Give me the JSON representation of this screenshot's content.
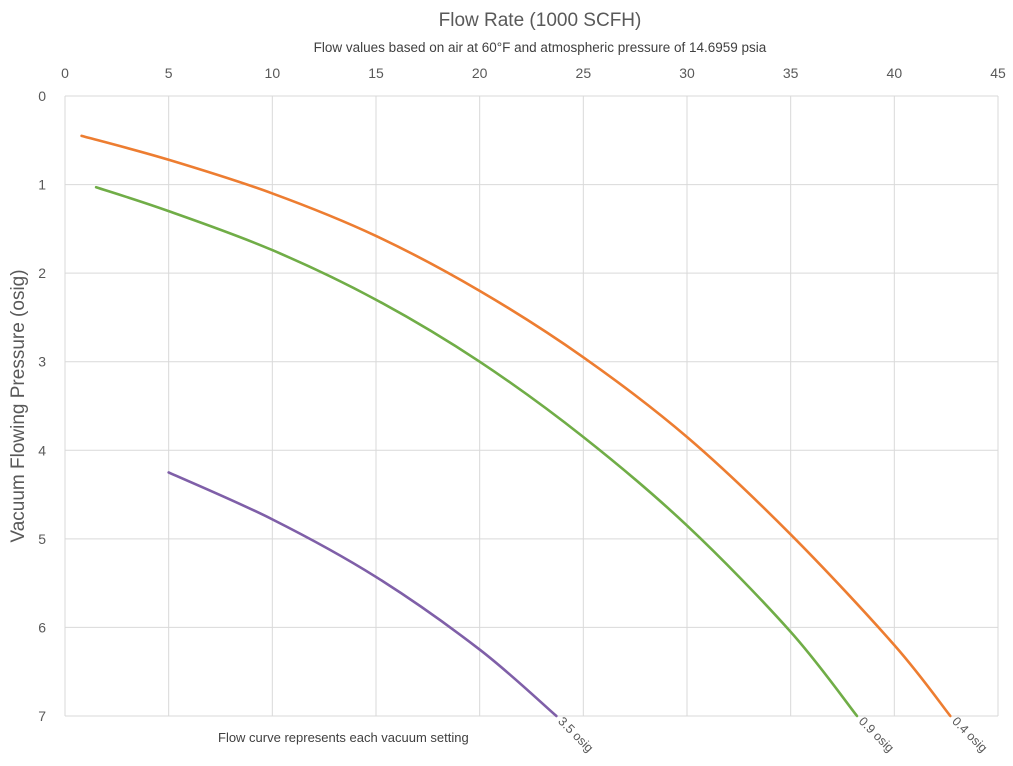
{
  "chart_data": {
    "type": "line",
    "title": "Flow Rate (1000 SCFH)",
    "subtitle": "Flow values based on air at 60°F and atmospheric pressure of 14.6959 psia",
    "xlabel": "Flow Rate (1000 SCFH)",
    "ylabel": "Vacuum Flowing Pressure (osig)",
    "x_axis_position": "top",
    "y_axis_inverted": true,
    "xlim": [
      0,
      45
    ],
    "ylim": [
      0,
      7
    ],
    "xticks": [
      0,
      5,
      10,
      15,
      20,
      25,
      30,
      35,
      40,
      45
    ],
    "yticks": [
      0,
      1,
      2,
      3,
      4,
      5,
      6,
      7
    ],
    "grid": true,
    "annotation": "Flow curve represents each vacuum setting",
    "series": [
      {
        "name": "0.4 osig",
        "color": "#ed7d31",
        "points": [
          [
            0.8,
            0.45
          ],
          [
            5,
            0.72
          ],
          [
            10,
            1.1
          ],
          [
            15,
            1.58
          ],
          [
            20,
            2.2
          ],
          [
            25,
            2.95
          ],
          [
            30,
            3.85
          ],
          [
            35,
            4.95
          ],
          [
            40,
            6.2
          ],
          [
            42.7,
            7.0
          ]
        ]
      },
      {
        "name": "0.9 osig",
        "color": "#70ad47",
        "points": [
          [
            1.5,
            1.03
          ],
          [
            5,
            1.3
          ],
          [
            10,
            1.74
          ],
          [
            15,
            2.3
          ],
          [
            20,
            3.0
          ],
          [
            25,
            3.85
          ],
          [
            30,
            4.85
          ],
          [
            35,
            6.05
          ],
          [
            38.2,
            7.0
          ]
        ]
      },
      {
        "name": "3.5 osig",
        "color": "#7f5fa8",
        "points": [
          [
            5,
            4.25
          ],
          [
            10,
            4.78
          ],
          [
            15,
            5.43
          ],
          [
            20,
            6.25
          ],
          [
            23.7,
            7.0
          ]
        ]
      }
    ]
  }
}
